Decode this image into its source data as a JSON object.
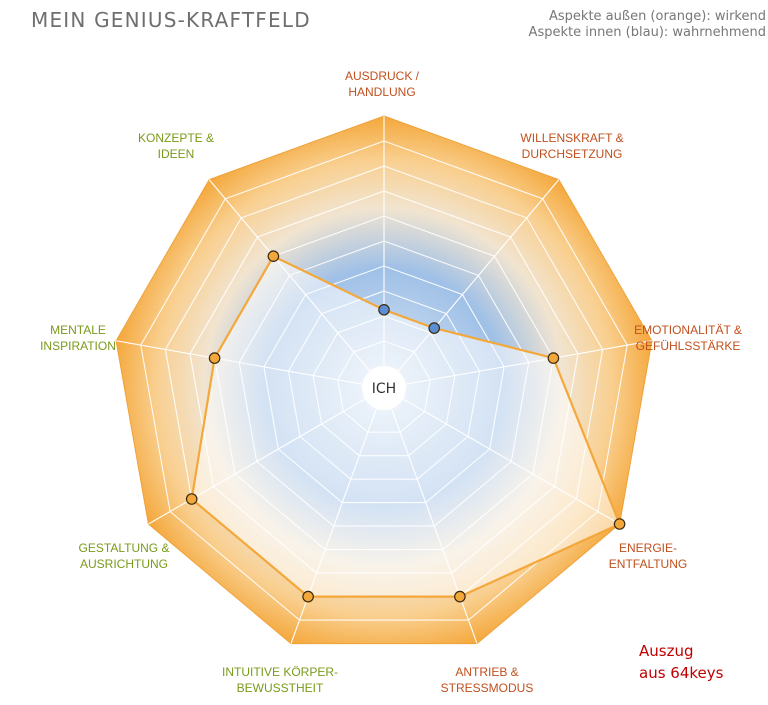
{
  "header": {
    "title": "MEIN GENIUS-KRAFTFELD",
    "legend_outer": "Aspekte außen (orange): wirkend",
    "legend_inner": "Aspekte innen (blau): wahrnehmend"
  },
  "footer_note": {
    "line1": "Auszug",
    "line2": "aus 64keys"
  },
  "colors": {
    "orange": "#f4a73a",
    "blue": "#5a8ed5",
    "green_label": "#7a9a1a",
    "red_label": "#c0501e",
    "grid": "#ffffff"
  },
  "chart_data": {
    "type": "radar",
    "center_label": "ICH",
    "scale": [
      -10,
      10
    ],
    "axes": [
      {
        "line1": "AUSDRUCK /",
        "line2": "HANDLUNG",
        "value": -6,
        "color": "red"
      },
      {
        "line1": "WILLENSKRAFT &",
        "line2": "DURCHSETZUNG",
        "value": -6,
        "color": "red"
      },
      {
        "line1": "EMOTIONALITÄT &",
        "line2": "GEFÜHLSSTÄRKE",
        "value": 6,
        "color": "red"
      },
      {
        "line1": "ENERGIE-",
        "line2": "ENTFALTUNG",
        "value": 10,
        "color": "red"
      },
      {
        "line1": "ANTRIEB &",
        "line2": "STRESSMODUS",
        "value": 8,
        "color": "red"
      },
      {
        "line1": "INTUITIVE KÖRPER-",
        "line2": "BEWUSSTHEIT",
        "value": 8,
        "color": "green"
      },
      {
        "line1": "GESTALTUNG &",
        "line2": "AUSRICHTUNG",
        "value": 8,
        "color": "green"
      },
      {
        "line1": "MENTALE",
        "line2": "INSPIRATION",
        "value": 6,
        "color": "green"
      },
      {
        "line1": "KONZEPTE &",
        "line2": "IDEEN",
        "value": 6,
        "color": "green"
      }
    ]
  }
}
